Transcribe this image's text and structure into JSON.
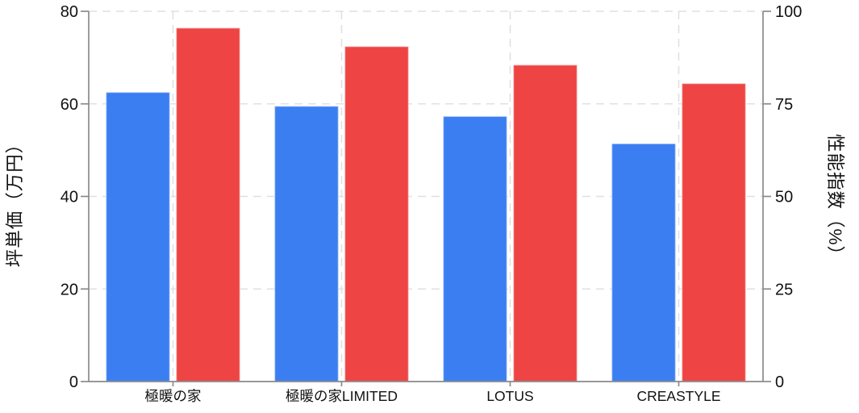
{
  "chart_data": {
    "type": "bar",
    "title": "",
    "categories": [
      "極暖の家",
      "極暖の家LIMITED",
      "LOTUS",
      "CREASTYLE"
    ],
    "series": [
      {
        "name": "坪単価（万円）",
        "axis": "left",
        "color": "#3B7EF2",
        "values": [
          62.5,
          59.5,
          57.3,
          51.4
        ]
      },
      {
        "name": "性能指数（%）",
        "axis": "right",
        "color": "#EE4444",
        "values": [
          95.5,
          90.5,
          85.5,
          80.5
        ]
      }
    ],
    "left_axis": {
      "label": "坪単価（万円）",
      "min": 0,
      "max": 80,
      "ticks": [
        0,
        20,
        40,
        60,
        80
      ]
    },
    "right_axis": {
      "label": "性能指数（%）",
      "min": 0,
      "max": 100,
      "ticks": [
        0,
        25,
        50,
        75,
        100
      ]
    },
    "grid": {
      "horizontal": true,
      "vertical": true,
      "style": "dashed",
      "color": "#E0E0E0"
    },
    "legend": "none",
    "axis_color": "#8A8A8A",
    "text_color": "#111111",
    "background": "#FFFFFF"
  }
}
